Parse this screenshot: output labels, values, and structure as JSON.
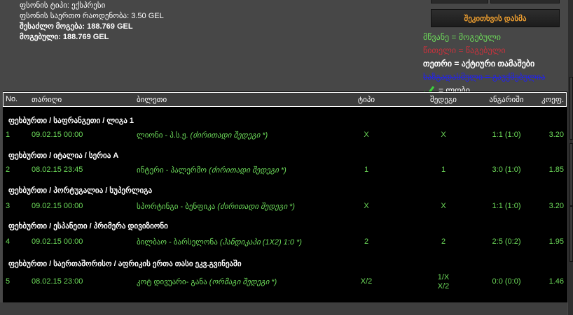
{
  "summary": {
    "bet_type": "ფსონის ტიპი: ექსპრესი",
    "total_stake": "ფსონის საერთო რაოდენობა: 3.50 GEL",
    "possible_win": "შესაძლო მოგება: 188.769 GEL",
    "won": "მოგებული: 188.769 GEL"
  },
  "ask_button": "შეკითხვის დასმა",
  "legend": {
    "green": "მწვანე = მოგებული",
    "red": "წითელი = წაგებული",
    "white": "თეთრი = აქტიური თამაშები",
    "struck": "ხაზგადასმული = გაუქმებულია",
    "check": "= ლობი",
    "colors": {
      "green": "#6ddc5a",
      "red": "#c8323c",
      "white": "#ffffff",
      "struck": "#2222ee"
    }
  },
  "table": {
    "headers": {
      "no": "No.",
      "date": "თარიღი",
      "ticket": "ბილეთი",
      "type": "ტიპი",
      "result": "შედეგი",
      "score": "ანგარიში",
      "coef": "კოეფ."
    },
    "rows": [
      {
        "group": "ფეხბურთი / საფრანგეთი / ლიგა 1",
        "no": "1",
        "date": "09.02.15 00:00",
        "match": "ლიონი - პ.ს.ჟ.",
        "market": "(ძირითადი შედეგი *)",
        "type": "X",
        "result": "X",
        "result2": "",
        "score": "1:1 (1:0)",
        "coef": "3.20"
      },
      {
        "group": "ფეხბურთი / იტალია / სერია A",
        "no": "2",
        "date": "08.02.15 23:45",
        "match": "ინტერი - პალერმო",
        "market": "(ძირითადი შედეგი *)",
        "type": "1",
        "result": "1",
        "result2": "",
        "score": "3:0 (1:0)",
        "coef": "1.85"
      },
      {
        "group": "ფეხბურთი / პორტუგალია / სუპერლიგა",
        "no": "3",
        "date": "09.02.15 00:00",
        "match": "სპორტინგი - ბენფიკა",
        "market": "(ძირითადი შედეგი *)",
        "type": "X",
        "result": "X",
        "result2": "",
        "score": "1:1 (1:0)",
        "coef": "3.20"
      },
      {
        "group": "ფეხბურთი / ესპანეთი / პრიმერა დივიზიონი",
        "no": "4",
        "date": "09.02.15 00:00",
        "match": "ბილბაო - ბარსელონა",
        "market": "(ჰანდიკაპი (1X2) 1:0 *)",
        "type": "2",
        "result": "2",
        "result2": "",
        "score": "2:5 (0:2)",
        "coef": "1.95"
      },
      {
        "group": "ფეხბურთი / საერთაშორისო / აფრიკის ერთა თასი ეკვ.გვინეაში",
        "no": "5",
        "date": "08.02.15 23:00",
        "match": "კოტ დივუარი- განა",
        "market": "(ორმაგი შედეგი *)",
        "type": "X/2",
        "result": "1/X",
        "result2": "X/2",
        "score": "0:0 (0:0)",
        "coef": "1.46"
      }
    ]
  }
}
